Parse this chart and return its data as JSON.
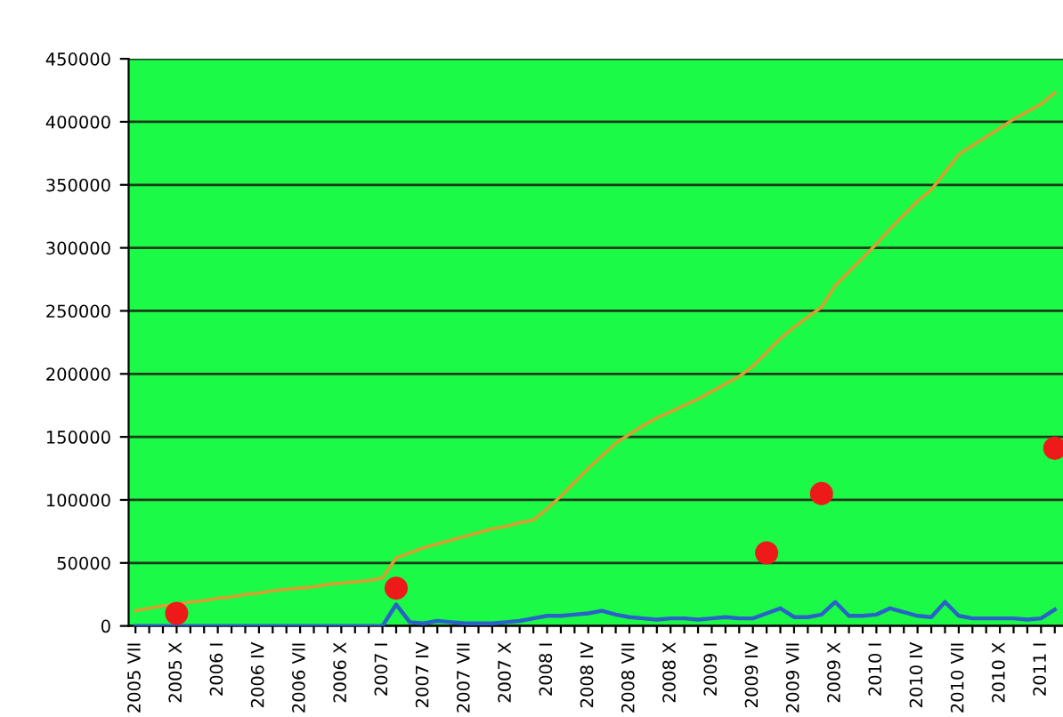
{
  "chart_data": {
    "type": "line",
    "categories": [
      "2005 VII",
      null,
      null,
      "2005 X",
      null,
      null,
      "2006 I",
      null,
      null,
      "2006 IV",
      null,
      null,
      "2006 VII",
      null,
      null,
      "2006 X",
      null,
      null,
      "2007 I",
      null,
      null,
      "2007 IV",
      null,
      null,
      "2007 VII",
      null,
      null,
      "2007 X",
      null,
      null,
      "2008 I",
      null,
      null,
      "2008 IV",
      null,
      null,
      "2008 VII",
      null,
      null,
      "2008 X",
      null,
      null,
      "2009 I",
      null,
      null,
      "2009 IV",
      null,
      null,
      "2009 VII",
      null,
      null,
      "2009 X",
      null,
      null,
      "2010 I",
      null,
      null,
      "2010 IV",
      null,
      null,
      "2010 VII",
      null,
      null,
      "2010 X",
      null,
      null,
      "2011 I",
      null
    ],
    "series": [
      {
        "color": "#d8a030",
        "values": [
          12000,
          14000,
          16000,
          17000,
          19000,
          20000,
          22000,
          23000,
          25000,
          26000,
          28000,
          29000,
          30000,
          31000,
          33000,
          34000,
          35000,
          36000,
          38000,
          54000,
          58000,
          62000,
          65000,
          68000,
          71000,
          74000,
          77000,
          79000,
          82000,
          84000,
          93000,
          103000,
          114000,
          125000,
          135000,
          145000,
          152000,
          159000,
          165000,
          170000,
          175000,
          180000,
          186000,
          192000,
          198000,
          206000,
          217000,
          228000,
          237000,
          245000,
          253000,
          270000,
          281000,
          292000,
          303000,
          315000,
          326000,
          337000,
          346000,
          360000,
          374000,
          381000,
          388000,
          395000,
          402000,
          408000,
          414000,
          423000
        ]
      },
      {
        "type": "line",
        "color": "#2a62c8",
        "values": [
          0,
          0,
          0,
          0,
          0,
          0,
          0,
          0,
          0,
          0,
          0,
          0,
          0,
          0,
          0,
          0,
          0,
          0,
          0,
          17000,
          3000,
          2000,
          4000,
          3000,
          2000,
          2000,
          2000,
          3000,
          4000,
          6000,
          8000,
          8000,
          9000,
          10000,
          12000,
          9000,
          7000,
          6000,
          5000,
          6000,
          6000,
          5000,
          6000,
          7000,
          6000,
          6000,
          10000,
          14000,
          7000,
          7000,
          9000,
          19000,
          8000,
          8000,
          9000,
          14000,
          11000,
          8000,
          7000,
          19000,
          8000,
          6000,
          6000,
          6000,
          6000,
          5000,
          6000,
          13000
        ]
      },
      {
        "type": "scatter",
        "marker": "circle",
        "color": "#ee1a1a",
        "values": [
          null,
          null,
          null,
          10000,
          null,
          null,
          null,
          null,
          null,
          null,
          null,
          null,
          null,
          null,
          null,
          null,
          null,
          null,
          null,
          30000,
          null,
          null,
          null,
          null,
          null,
          null,
          null,
          null,
          null,
          null,
          null,
          null,
          null,
          null,
          null,
          null,
          null,
          null,
          null,
          null,
          null,
          null,
          null,
          null,
          null,
          null,
          58000,
          null,
          null,
          null,
          105000,
          null,
          null,
          null,
          null,
          null,
          null,
          null,
          null,
          null,
          null,
          null,
          null,
          null,
          null,
          null,
          null,
          141000
        ]
      }
    ],
    "ylim": [
      0,
      450000
    ],
    "yticks": [
      0,
      50000,
      100000,
      150000,
      200000,
      250000,
      300000,
      350000,
      400000,
      450000
    ],
    "grid": "y"
  }
}
